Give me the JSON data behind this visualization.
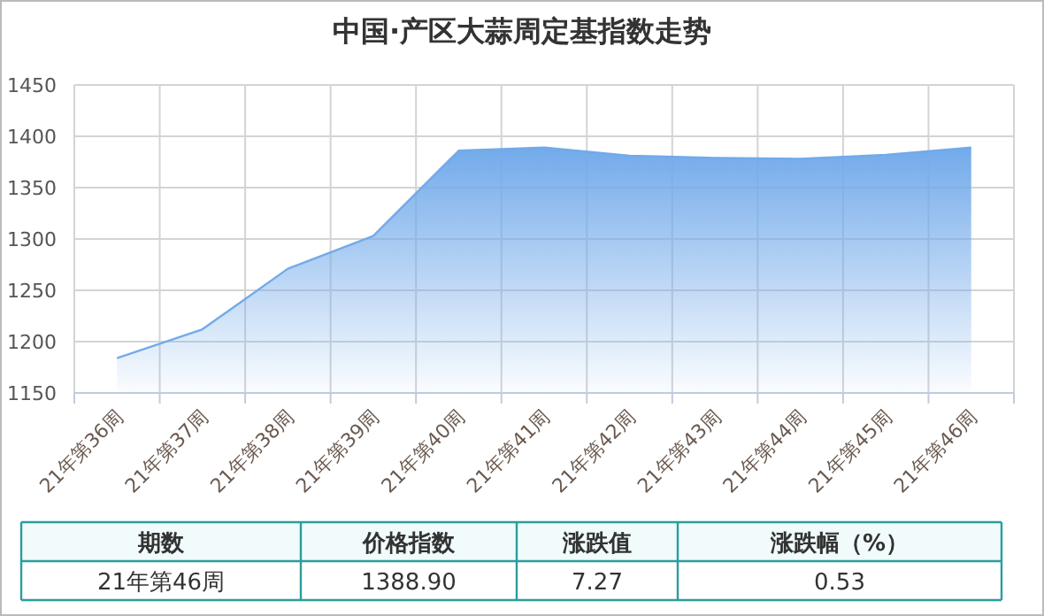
{
  "chart_data": {
    "type": "area",
    "title": "中国·产区大蒜周定基指数走势",
    "categories": [
      "21年第36周",
      "21年第37周",
      "21年第38周",
      "21年第39周",
      "21年第40周",
      "21年第41周",
      "21年第42周",
      "21年第43周",
      "21年第44周",
      "21年第45周",
      "21年第46周"
    ],
    "series": [
      {
        "color": "#72aaea",
        "values": [
          1184,
          1212,
          1271,
          1303,
          1386,
          1389,
          1381,
          1379,
          1378,
          1382,
          1389
        ]
      }
    ],
    "ylim": [
      1150,
      1450
    ],
    "yticks": [
      1150,
      1200,
      1250,
      1300,
      1350,
      1400,
      1450
    ],
    "grid": true,
    "annotations": [
      "期数",
      "价格指数",
      "涨跌值",
      "涨跌幅（%）",
      "21年第46周",
      "1388.90",
      "7.27",
      "0.53"
    ]
  }
}
